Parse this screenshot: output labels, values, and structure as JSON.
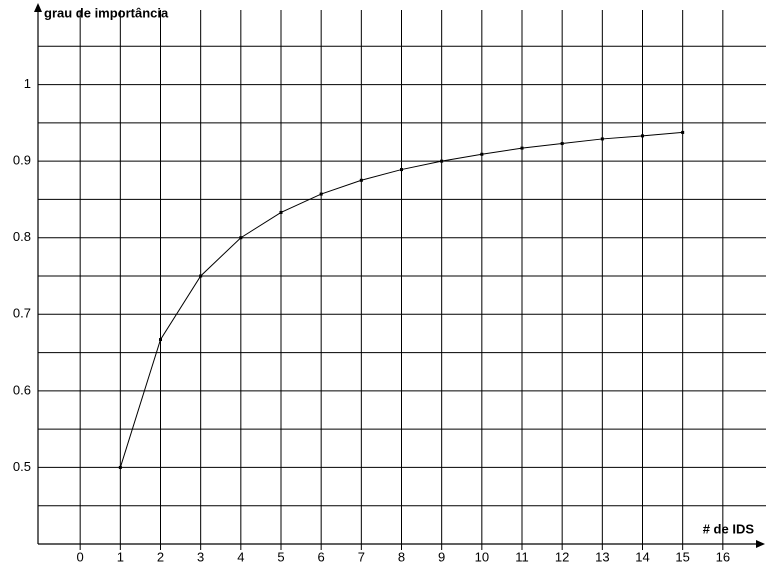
{
  "chart_data": {
    "type": "line",
    "x_label": "# de IDS",
    "y_label": "grau de importância",
    "x": [
      1,
      2,
      3,
      4,
      5,
      6,
      7,
      8,
      9,
      10,
      11,
      12,
      13,
      14,
      15
    ],
    "series": [
      {
        "name": null,
        "color": "#000000",
        "values": [
          0.5,
          0.667,
          0.75,
          0.8,
          0.833,
          0.857,
          0.875,
          0.889,
          0.9,
          0.909,
          0.917,
          0.923,
          0.929,
          0.933,
          0.9375
        ]
      }
    ],
    "xlim": [
      -1,
      17
    ],
    "xticks": [
      0,
      1,
      2,
      3,
      4,
      5,
      6,
      7,
      8,
      9,
      10,
      11,
      12,
      13,
      14,
      15,
      16
    ],
    "ylim": [
      0.4,
      1.1
    ],
    "yticks": [
      0.5,
      0.6,
      0.7,
      0.8,
      0.9,
      1
    ],
    "minor_yticks": [
      0.45,
      0.55,
      0.65,
      0.75,
      0.85,
      0.95,
      1.05
    ],
    "grid": true
  }
}
